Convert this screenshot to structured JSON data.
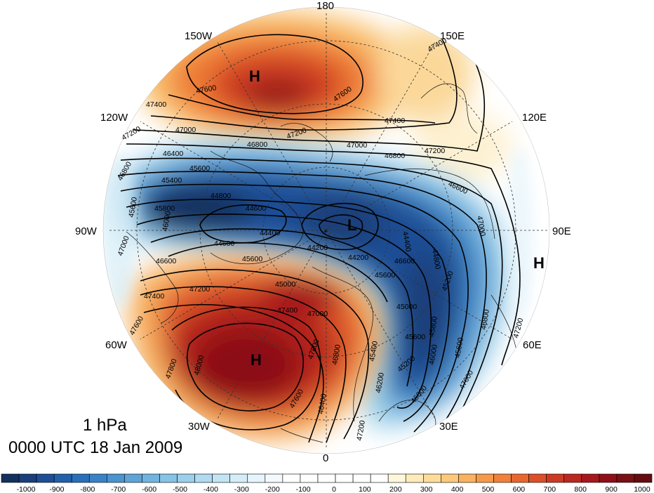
{
  "caption": {
    "level": "1 hPa",
    "time": "0000 UTC 18 Jan 2009"
  },
  "longitude_labels": {
    "lon_180": "180",
    "lon_150e": "150E",
    "lon_120e": "120E",
    "lon_90e": "90E",
    "lon_60e": "60E",
    "lon_30e": "30E",
    "lon_0": "0",
    "lon_30w": "30W",
    "lon_60w": "60W",
    "lon_90w": "90W",
    "lon_120w": "120W",
    "lon_150w": "150W"
  },
  "pressure_systems": {
    "high_pacific": "H",
    "high_atlantic": "H",
    "high_east": "H",
    "low_arctic": "L"
  },
  "contour_labels": {
    "c1": "47400",
    "c2": "47600",
    "c3": "47600",
    "c4": "47400",
    "c5": "47200",
    "c6": "47000",
    "c7": "46800",
    "c8": "47200",
    "c9": "47400",
    "c10": "47000",
    "c11": "46800",
    "c12": "47200",
    "c13": "46400",
    "c14": "45600",
    "c15": "46600",
    "c16": "46800",
    "c17": "45400",
    "c18": "44800",
    "c19": "44600",
    "c20": "44400",
    "c21": "44600",
    "c22": "44200",
    "c23": "44200",
    "c24": "44400",
    "c25": "44800",
    "c26": "45000",
    "c27": "45200",
    "c28": "45600",
    "c29": "45800",
    "c30": "46800",
    "c31": "47000",
    "c32": "47200",
    "c33": "45600",
    "c34": "45800",
    "c35": "46000",
    "c36": "46600",
    "c37": "47200",
    "c38": "47400",
    "c39": "47000",
    "c40": "47600",
    "c41": "47800",
    "c42": "48000",
    "c43": "47800",
    "c44": "47600",
    "c45": "47400",
    "c46": "47000",
    "c47": "46800",
    "c48": "45400",
    "c49": "45600",
    "c50": "45200",
    "c51": "46200",
    "c52": "46600",
    "c53": "47000",
    "c54": "46600",
    "c55": "47200",
    "c56": "45000",
    "c57": "45600",
    "c58": "46000",
    "c59": "45600",
    "c60": "46400"
  },
  "colorbar": {
    "ticks": [
      "-1000",
      "-900",
      "-800",
      "-700",
      "-600",
      "-500",
      "-400",
      "-300",
      "-200",
      "-100",
      "0",
      "100",
      "200",
      "300",
      "400",
      "500",
      "600",
      "700",
      "800",
      "900",
      "1000"
    ],
    "range": [
      -1000,
      1000
    ],
    "step": 50,
    "colors": [
      "#14305e",
      "#1a3f7a",
      "#1f4e95",
      "#245faa",
      "#2b6fbb",
      "#3a82c6",
      "#4c93cf",
      "#5ea4d7",
      "#72b4de",
      "#87c3e5",
      "#9ccfeb",
      "#b0daef",
      "#c3e4f3",
      "#d5edf7",
      "#e6f4fb",
      "#f3f9fd",
      "#ffffff",
      "#ffffff",
      "#ffffff",
      "#ffffff",
      "#ffffff",
      "#ffffff",
      "#fff7dc",
      "#fdebba",
      "#fddc98",
      "#fcc97a",
      "#f9b25f",
      "#f69a4a",
      "#f1803a",
      "#e8672f",
      "#dc4f29",
      "#cc3a24",
      "#ba2820",
      "#a5191c",
      "#8f0f18",
      "#781015",
      "#640c10"
    ]
  }
}
